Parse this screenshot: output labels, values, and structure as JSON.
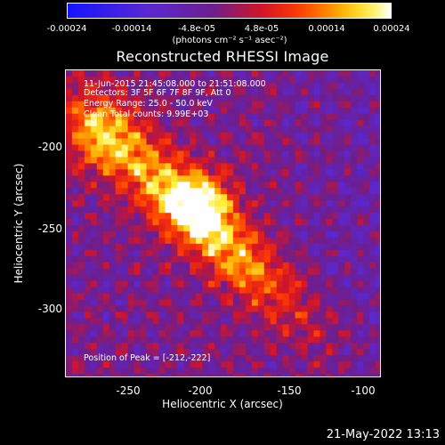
{
  "colorbar": {
    "ticks": [
      "-0.00024",
      "-0.00014",
      "-4.8e-05",
      "4.8e-05",
      "0.00014",
      "0.00024"
    ],
    "unit_label": "(photons cm⁻² s⁻¹ asec⁻²)",
    "range": [
      -0.00024,
      0.00024
    ]
  },
  "title": "Reconstructed RHESSI Image",
  "annotations": {
    "time": "11-Jun-2015 21:45:08.000 to 21:51:08.000",
    "detectors": "Detectors: 3F 5F 6F 7F 8F 9F, Att 0",
    "energy": "Energy Range: 25.0 - 50.0 keV",
    "clean": "Clean    Total counts: 9.99E+03",
    "peak": "Position of Peak = [-212,-222]"
  },
  "axes": {
    "xlabel": "Heliocentric X (arcsec)",
    "ylabel": "Heliocentric Y (arcsec)",
    "xticks": [
      "-250",
      "-200",
      "-150",
      "-100"
    ],
    "yticks": [
      "-200",
      "-250",
      "-300"
    ],
    "xlim": [
      -284,
      -88
    ],
    "ylim": [
      -347,
      -156
    ]
  },
  "footer": "21-May-2022 13:13"
}
